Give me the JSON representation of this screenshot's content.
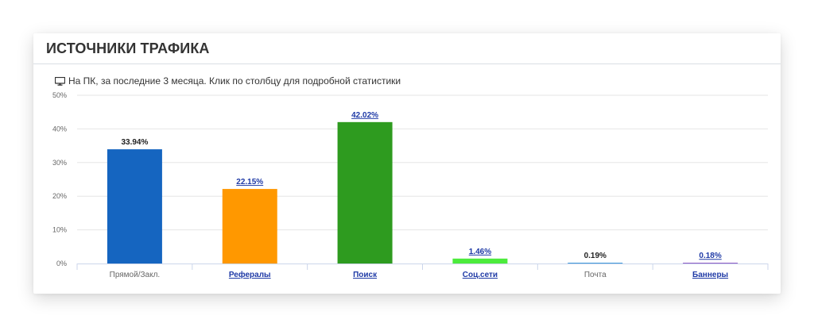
{
  "card": {
    "title": "ИСТОЧНИКИ ТРАФИКА",
    "subtitle": "На ПК, за последние 3 месяца. Клик по столбцу для подробной статистики",
    "subtitle_icon": "monitor-icon"
  },
  "chart_data": {
    "type": "bar",
    "categories": [
      "Прямой/Закл.",
      "Рефералы",
      "Поиск",
      "Соц.сети",
      "Почта",
      "Баннеры"
    ],
    "values": [
      33.94,
      22.15,
      42.02,
      1.46,
      0.19,
      0.18
    ],
    "data_labels": [
      "33.94%",
      "22.15%",
      "42.02%",
      "1.46%",
      "0.19%",
      "0.18%"
    ],
    "colors": [
      "#1565c0",
      "#ff9800",
      "#2e9b1f",
      "#4ceb3c",
      "#0f7fd2",
      "#6d2bb5"
    ],
    "linked": [
      false,
      true,
      true,
      true,
      false,
      true
    ],
    "ylim": [
      0,
      50
    ],
    "yticks": [
      "0%",
      "10%",
      "20%",
      "30%",
      "40%",
      "50%"
    ],
    "grid": true,
    "legend": "none"
  }
}
